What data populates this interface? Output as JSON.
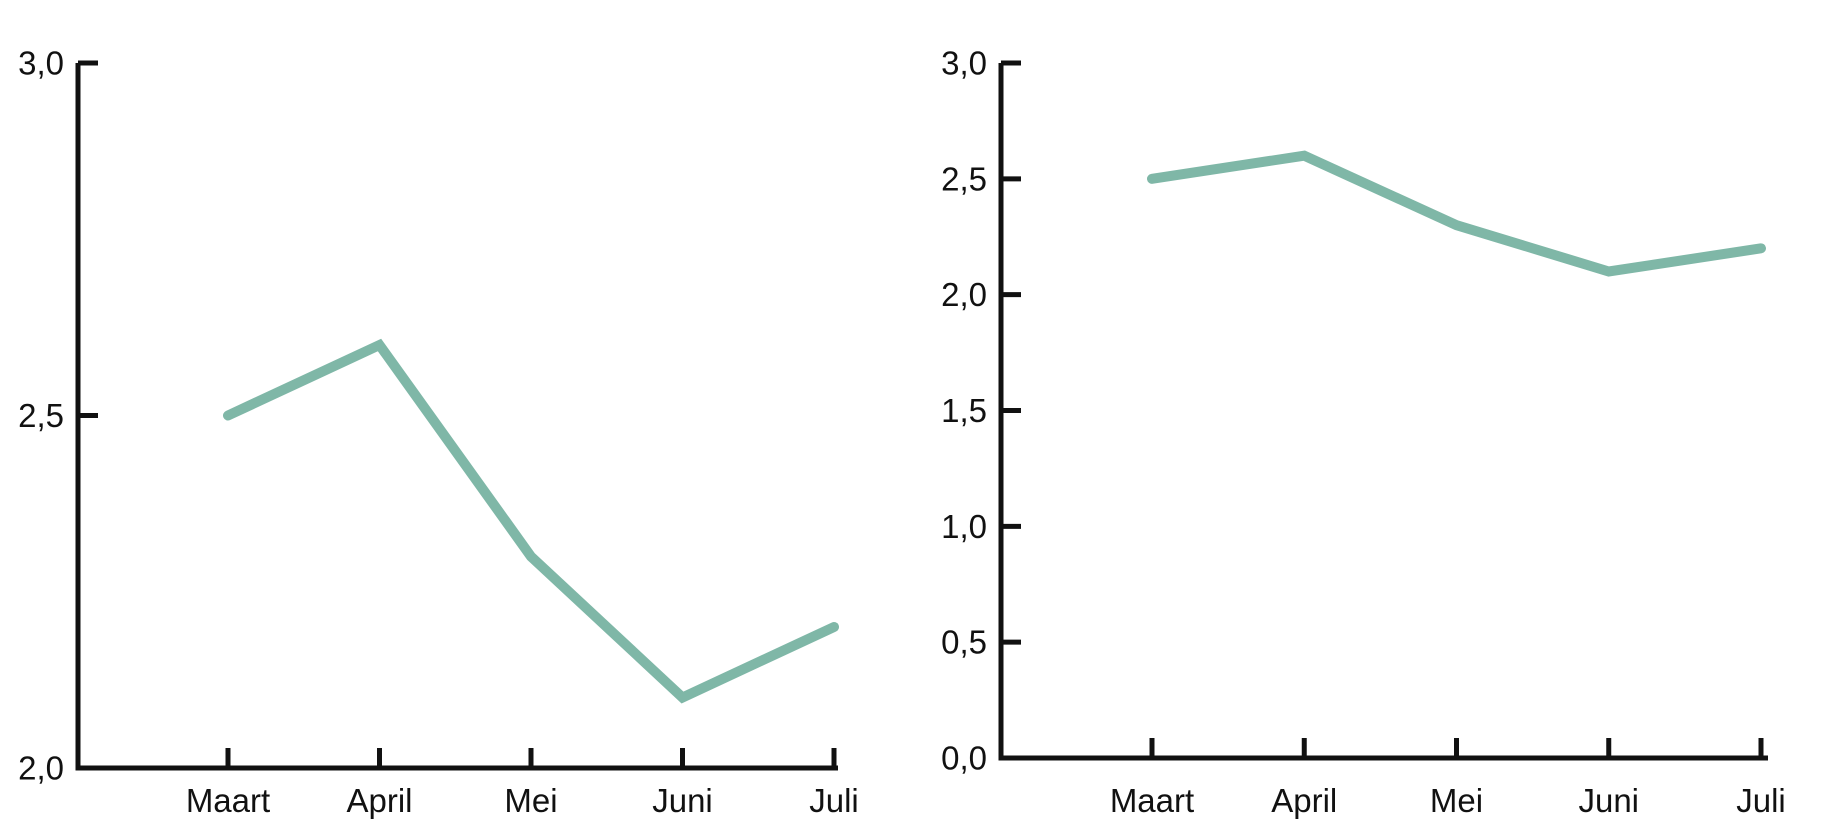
{
  "figure": {
    "background": "#ffffff",
    "axis_color": "#111111",
    "line_color": "#7fb7a7",
    "text_color": "#111111"
  },
  "chart_data": [
    {
      "type": "line",
      "name": "zoomed-scale-chart",
      "title": "",
      "categories": [
        "Maart",
        "April",
        "Mei",
        "Juni",
        "Juli"
      ],
      "values": [
        2.5,
        2.6,
        2.3,
        2.1,
        2.2
      ],
      "xlabel": "",
      "ylabel": "",
      "ylim": [
        2.0,
        3.0
      ],
      "yticks": [
        {
          "value": 3.0,
          "label": "3,0"
        },
        {
          "value": 2.5,
          "label": "2,5"
        },
        {
          "value": 2.0,
          "label": "2,0"
        }
      ],
      "grid": false,
      "legend": null,
      "line_color": "#7fb7a7",
      "axis_color": "#111111"
    },
    {
      "type": "line",
      "name": "full-scale-chart",
      "title": "",
      "categories": [
        "Maart",
        "April",
        "Mei",
        "Juni",
        "Juli"
      ],
      "values": [
        2.5,
        2.6,
        2.3,
        2.1,
        2.2
      ],
      "xlabel": "",
      "ylabel": "",
      "ylim": [
        0.0,
        3.0
      ],
      "yticks": [
        {
          "value": 3.0,
          "label": "3,0"
        },
        {
          "value": 2.5,
          "label": "2,5"
        },
        {
          "value": 2.0,
          "label": "2,0"
        },
        {
          "value": 1.5,
          "label": "1,5"
        },
        {
          "value": 1.0,
          "label": "1,0"
        },
        {
          "value": 0.5,
          "label": "0,5"
        },
        {
          "value": 0.0,
          "label": "0,0"
        }
      ],
      "grid": false,
      "legend": null,
      "line_color": "#7fb7a7",
      "axis_color": "#111111"
    }
  ]
}
